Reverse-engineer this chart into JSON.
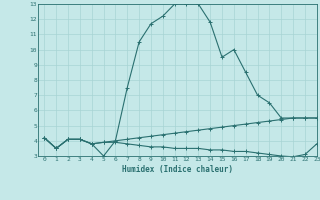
{
  "xlabel": "Humidex (Indice chaleur)",
  "xlim": [
    -0.5,
    23
  ],
  "ylim": [
    3,
    13
  ],
  "xticks": [
    0,
    1,
    2,
    3,
    4,
    5,
    6,
    7,
    8,
    9,
    10,
    11,
    12,
    13,
    14,
    15,
    16,
    17,
    18,
    19,
    20,
    21,
    22,
    23
  ],
  "yticks": [
    3,
    4,
    5,
    6,
    7,
    8,
    9,
    10,
    11,
    12,
    13
  ],
  "bg_color": "#c5e8e8",
  "line_color": "#2a7070",
  "grid_color": "#a8d4d4",
  "line1_x": [
    0,
    1,
    2,
    3,
    4,
    5,
    6,
    7,
    8,
    9,
    10,
    11,
    12,
    13,
    14,
    15,
    16,
    17,
    18,
    19,
    20,
    21,
    22,
    23
  ],
  "line1_y": [
    4.2,
    3.5,
    4.1,
    4.1,
    3.8,
    3.0,
    4.0,
    7.5,
    10.5,
    11.7,
    12.2,
    13.0,
    13.0,
    13.0,
    11.8,
    9.5,
    10.0,
    8.5,
    7.0,
    6.5,
    5.5,
    5.5,
    5.5,
    5.5
  ],
  "line2_x": [
    0,
    1,
    2,
    3,
    4,
    5,
    6,
    7,
    8,
    9,
    10,
    11,
    12,
    13,
    14,
    15,
    16,
    17,
    18,
    19,
    20,
    21,
    22,
    23
  ],
  "line2_y": [
    4.2,
    3.5,
    4.1,
    4.1,
    3.8,
    3.9,
    4.0,
    4.1,
    4.2,
    4.3,
    4.4,
    4.5,
    4.6,
    4.7,
    4.8,
    4.9,
    5.0,
    5.1,
    5.2,
    5.3,
    5.4,
    5.5,
    5.5,
    5.5
  ],
  "line3_x": [
    0,
    1,
    2,
    3,
    4,
    5,
    6,
    7,
    8,
    9,
    10,
    11,
    12,
    13,
    14,
    15,
    16,
    17,
    18,
    19,
    20,
    21,
    22,
    23
  ],
  "line3_y": [
    4.2,
    3.5,
    4.1,
    4.1,
    3.8,
    3.9,
    3.9,
    3.8,
    3.7,
    3.6,
    3.6,
    3.5,
    3.5,
    3.5,
    3.4,
    3.4,
    3.3,
    3.3,
    3.2,
    3.1,
    3.0,
    2.95,
    3.1,
    3.8
  ]
}
